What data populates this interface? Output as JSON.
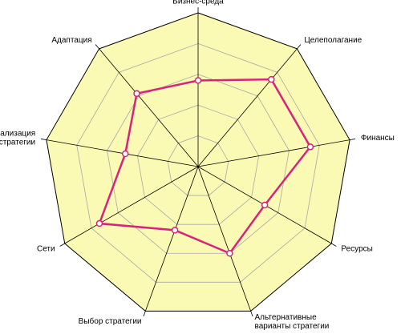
{
  "chart_data": {
    "type": "radar",
    "categories": [
      "Бизнес-среда",
      "Целеполагание",
      "Финансы",
      "Ресурсы",
      "Альтернативные\nварианты стратегии",
      "Выбор стратегии",
      "Сети",
      "Реализация\nстратегии",
      "Адаптация"
    ],
    "series": [
      {
        "color": "#d6247d",
        "values": [
          2.8,
          3.7,
          3.7,
          2.5,
          3.0,
          2.2,
          3.7,
          2.4,
          3.1
        ]
      }
    ],
    "ylim": [
      0,
      5
    ],
    "yticks": [
      1,
      2,
      3,
      4,
      5
    ],
    "grid": true,
    "background": "#fafab4"
  }
}
